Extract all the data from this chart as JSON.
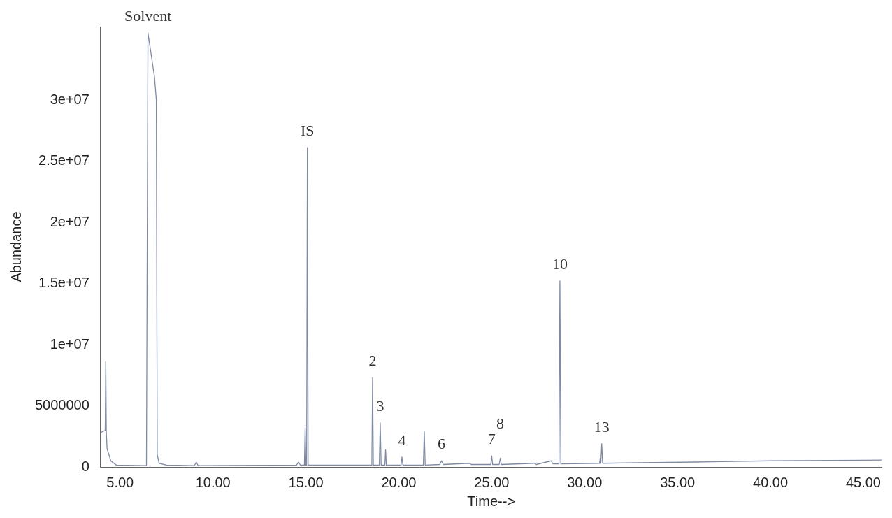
{
  "chart_data": {
    "type": "line",
    "xlabel": "Time-->",
    "ylabel": "Abundance",
    "xlim": [
      3.95,
      46
    ],
    "ylim": [
      0,
      36000000
    ],
    "xticks": [
      {
        "value": 5,
        "label": "5.00"
      },
      {
        "value": 10,
        "label": "10.00"
      },
      {
        "value": 15,
        "label": "15.00"
      },
      {
        "value": 20,
        "label": "20.00"
      },
      {
        "value": 25,
        "label": "25.00"
      },
      {
        "value": 30,
        "label": "30.00"
      },
      {
        "value": 35,
        "label": "35.00"
      },
      {
        "value": 40,
        "label": "40.00"
      },
      {
        "value": 45,
        "label": "45.00"
      }
    ],
    "yticks": [
      0,
      5000000,
      {
        "value": 10000000,
        "label": "1e+07"
      },
      {
        "value": 15000000,
        "label": "1.5e+07"
      },
      {
        "value": 20000000,
        "label": "2e+07"
      },
      {
        "value": 25000000,
        "label": "2.5e+07"
      },
      {
        "value": 30000000,
        "label": "3e+07"
      }
    ],
    "grid": false,
    "legend": false,
    "marker": "none",
    "line_style": "solid",
    "series": [
      {
        "color": "#7f8aa3",
        "x": [
          3.96,
          4.2,
          4.23,
          4.26,
          4.3,
          4.5,
          4.8,
          6.42,
          6.5,
          6.85,
          6.95,
          7.0,
          7.1,
          7.5,
          9.0,
          9.1,
          9.2,
          14.5,
          14.6,
          14.7,
          14.92,
          14.96,
          15.0,
          15.04,
          15.08,
          15.12,
          18.0,
          18.55,
          18.59,
          18.63,
          18.95,
          19.0,
          19.05,
          19.25,
          19.29,
          19.33,
          20.12,
          20.17,
          20.22,
          21.32,
          21.37,
          21.42,
          22.2,
          22.3,
          22.4,
          23.8,
          23.9,
          24.95,
          25.0,
          25.05,
          25.4,
          25.46,
          25.52,
          27.3,
          27.4,
          28.2,
          28.3,
          28.62,
          28.67,
          28.72,
          30.8,
          30.84,
          30.87,
          30.92,
          30.97,
          33,
          36,
          40,
          45,
          46
        ],
        "values": [
          2800000,
          3000000,
          8600000,
          2800000,
          1500000,
          500000,
          150000,
          100000,
          35500000,
          31900000,
          30000000,
          1000000,
          300000,
          150000,
          100000,
          400000,
          100000,
          150000,
          400000,
          150000,
          150000,
          3200000,
          150000,
          150000,
          26100000,
          150000,
          150000,
          150000,
          7300000,
          150000,
          150000,
          3600000,
          150000,
          150000,
          1400000,
          150000,
          150000,
          800000,
          150000,
          150000,
          2900000,
          150000,
          200000,
          500000,
          200000,
          300000,
          200000,
          200000,
          900000,
          200000,
          200000,
          700000,
          200000,
          300000,
          200000,
          500000,
          250000,
          250000,
          15200000,
          250000,
          300000,
          700000,
          300000,
          1900000,
          300000,
          350000,
          400000,
          500000,
          550000,
          560000
        ]
      }
    ],
    "annotations": [
      {
        "text": "Solvent",
        "x": 6.5,
        "y": 35500000
      },
      {
        "text": "IS",
        "x": 15.08,
        "y": 26100000
      },
      {
        "text": "2",
        "x": 18.59,
        "y": 7300000
      },
      {
        "text": "3",
        "x": 19.0,
        "y": 3600000
      },
      {
        "text": "4",
        "x": 20.17,
        "y": 800000
      },
      {
        "text": "6",
        "x": 22.3,
        "y": 500000
      },
      {
        "text": "7",
        "x": 25.0,
        "y": 900000
      },
      {
        "text": "8",
        "x": 25.46,
        "y": 700000
      },
      {
        "text": "10",
        "x": 28.67,
        "y": 15200000
      },
      {
        "text": "13",
        "x": 30.92,
        "y": 1900000
      }
    ]
  }
}
